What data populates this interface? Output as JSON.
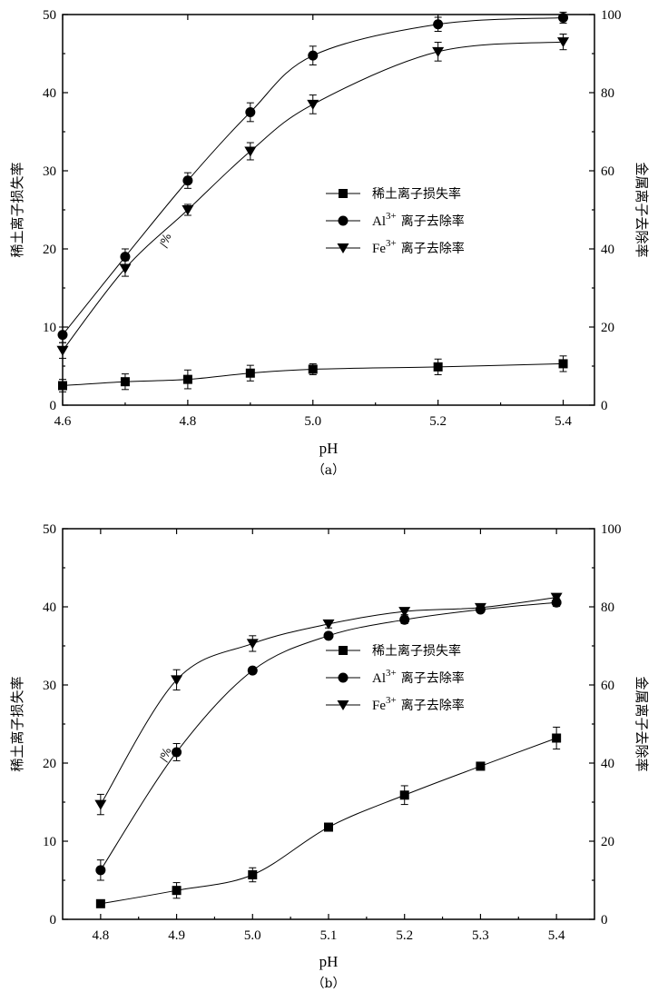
{
  "chart_data": [
    {
      "type": "line",
      "caption": "（a）",
      "xlabel": "pH",
      "ylabel_left": "稀土离子损失率",
      "ylabel_right": "金属离子去除率",
      "ylim_left": [
        0,
        50
      ],
      "ylim_right": [
        0,
        100
      ],
      "xlim": [
        4.6,
        5.45
      ],
      "x_ticks": [
        4.6,
        4.8,
        5.0,
        5.2,
        5.4
      ],
      "x_ticklabels": [
        "4.6",
        "4.8",
        "5.0",
        "5.2",
        "5.4"
      ],
      "y_left_ticks": [
        0,
        10,
        20,
        30,
        40,
        50
      ],
      "y_left_ticklabels": [
        "0",
        "10",
        "20",
        "30",
        "40",
        "50"
      ],
      "y_right_ticks": [
        0,
        20,
        40,
        60,
        80,
        100
      ],
      "y_right_ticklabels": [
        "0",
        "20",
        "40",
        "60",
        "80",
        "100"
      ],
      "annotation": "/%",
      "legend": [
        {
          "marker": "square",
          "text": "稀土离子损失率",
          "sym": "",
          "sup": ""
        },
        {
          "marker": "circle",
          "text": "离子去除率",
          "sym": "Al",
          "sup": "3+"
        },
        {
          "marker": "triangle",
          "text": "离子去除率",
          "sym": "Fe",
          "sup": "3+"
        }
      ],
      "series": [
        {
          "axis": "left",
          "marker": "square",
          "x": [
            4.6,
            4.7,
            4.8,
            4.9,
            5.0,
            5.2,
            5.4
          ],
          "y": [
            2.5,
            3.0,
            3.3,
            4.1,
            4.6,
            4.9,
            5.3
          ],
          "err": [
            0.8,
            1.0,
            1.2,
            1.0,
            0.7,
            1.0,
            1.0
          ]
        },
        {
          "axis": "right",
          "marker": "circle",
          "x": [
            4.6,
            4.7,
            4.8,
            4.9,
            5.0,
            5.2,
            5.4
          ],
          "y": [
            18,
            38,
            57.5,
            75,
            89.5,
            97.5,
            99.2
          ],
          "err": [
            2,
            2,
            2,
            2.4,
            2.4,
            1.8,
            1.4
          ]
        },
        {
          "axis": "right",
          "marker": "triangle",
          "x": [
            4.6,
            4.7,
            4.8,
            4.9,
            5.0,
            5.2,
            5.4
          ],
          "y": [
            14,
            35,
            50,
            65,
            77,
            90.5,
            93
          ],
          "err": [
            2,
            2,
            1.4,
            2.2,
            2.4,
            2.4,
            2
          ]
        }
      ]
    },
    {
      "type": "line",
      "caption": "（b）",
      "xlabel": "pH",
      "ylabel_left": "稀土离子损失率",
      "ylabel_right": "金属离子去除率",
      "ylim_left": [
        0,
        50
      ],
      "ylim_right": [
        0,
        100
      ],
      "xlim": [
        4.75,
        5.45
      ],
      "x_ticks": [
        4.8,
        4.9,
        5.0,
        5.1,
        5.2,
        5.3,
        5.4
      ],
      "x_ticklabels": [
        "4.8",
        "4.9",
        "5.0",
        "5.1",
        "5.2",
        "5.3",
        "5.4"
      ],
      "y_left_ticks": [
        0,
        10,
        20,
        30,
        40,
        50
      ],
      "y_left_ticklabels": [
        "0",
        "10",
        "20",
        "30",
        "40",
        "50"
      ],
      "y_right_ticks": [
        0,
        20,
        40,
        60,
        80,
        100
      ],
      "y_right_ticklabels": [
        "0",
        "20",
        "40",
        "60",
        "80",
        "100"
      ],
      "annotation": "/%",
      "legend": [
        {
          "marker": "square",
          "text": "稀土离子损失率",
          "sym": "",
          "sup": ""
        },
        {
          "marker": "circle",
          "text": "离子去除率",
          "sym": "Al",
          "sup": "3+"
        },
        {
          "marker": "triangle",
          "text": "离子去除率",
          "sym": "Fe",
          "sup": "3+"
        }
      ],
      "series": [
        {
          "axis": "left",
          "marker": "square",
          "x": [
            4.8,
            4.9,
            5.0,
            5.1,
            5.2,
            5.3,
            5.4
          ],
          "y": [
            2.0,
            3.7,
            5.7,
            11.8,
            15.9,
            19.6,
            23.2
          ],
          "err": [
            0.3,
            1.0,
            0.9,
            0.4,
            1.2,
            0.3,
            1.4
          ]
        },
        {
          "axis": "right",
          "marker": "circle",
          "x": [
            4.8,
            4.9,
            5.0,
            5.1,
            5.2,
            5.3,
            5.4
          ],
          "y": [
            12.6,
            42.8,
            63.7,
            72.6,
            76.7,
            79.3,
            81.1
          ],
          "err": [
            2.6,
            2.2,
            0.8,
            0.8,
            1.0,
            0.8,
            1.0
          ]
        },
        {
          "axis": "right",
          "marker": "triangle",
          "x": [
            4.8,
            4.9,
            5.0,
            5.1,
            5.2,
            5.3,
            5.4
          ],
          "y": [
            29.4,
            61.3,
            70.6,
            75.6,
            78.8,
            79.8,
            82.4
          ],
          "err": [
            2.6,
            2.6,
            2.0,
            1.0,
            0.8,
            0.6,
            0.6
          ]
        }
      ]
    }
  ]
}
